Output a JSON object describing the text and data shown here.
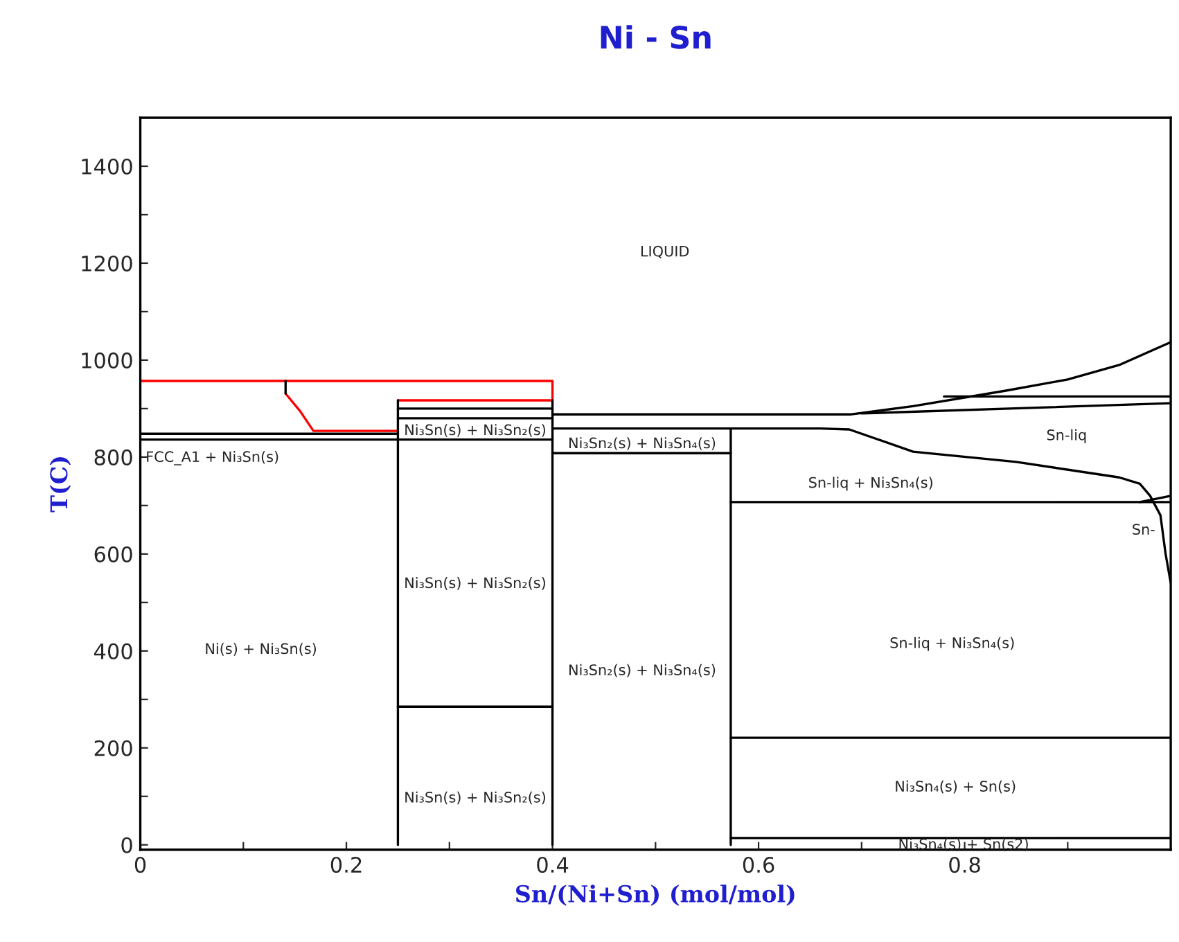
{
  "chart_data": {
    "type": "line",
    "title": "Ni - Sn",
    "xlabel": "Sn/(Ni+Sn) (mol/mol)",
    "ylabel": "T(C)",
    "xlim": [
      0,
      1
    ],
    "ylim": [
      -10,
      1500
    ],
    "xticks": [
      0,
      {
        "value": 0.1,
        "label": null
      },
      0.2,
      {
        "value": 0.3,
        "label": null
      },
      0.4,
      {
        "value": 0.5,
        "label": null
      },
      0.6,
      {
        "value": 0.7,
        "label": null
      },
      0.8,
      {
        "value": 0.9,
        "label": null
      }
    ],
    "yticks": [
      0,
      {
        "value": 100,
        "label": null
      },
      200,
      {
        "value": 300,
        "label": null
      },
      400,
      {
        "value": 500,
        "label": null
      },
      600,
      {
        "value": 700,
        "label": null
      },
      800,
      {
        "value": 900,
        "label": null
      },
      1000,
      {
        "value": 1100,
        "label": null
      },
      1200,
      {
        "value": 1300,
        "label": null
      },
      1400
    ],
    "grid": false,
    "legend": false,
    "marker": "none",
    "line_style": "solid",
    "series": [
      {
        "color": "#ff0000",
        "x": [
          0,
          0.4,
          0.4,
          0.25
        ],
        "values": [
          957,
          957,
          917,
          917
        ]
      },
      {
        "color": "#ff0000",
        "x": [
          0.25,
          0.168,
          0.155,
          0.141
        ],
        "values": [
          854,
          854,
          895,
          931
        ]
      },
      {
        "color": "#000000",
        "x": [
          0.141,
          0.141
        ],
        "values": [
          931,
          957
        ]
      },
      {
        "color": "#000000",
        "x": [
          0.25,
          0.25
        ],
        "values": [
          0,
          917
        ]
      },
      {
        "color": "#000000",
        "x": [
          0.4,
          0.4
        ],
        "values": [
          0,
          917
        ]
      },
      {
        "color": "#000000",
        "x": [
          0.573,
          0.573
        ],
        "values": [
          0,
          859
        ]
      },
      {
        "color": "#000000",
        "x": [
          0.25,
          0.4
        ],
        "values": [
          285,
          285
        ]
      },
      {
        "color": "#000000",
        "x": [
          0,
          0.4
        ],
        "values": [
          836,
          836
        ]
      },
      {
        "color": "#000000",
        "x": [
          0,
          0.25
        ],
        "values": [
          848,
          848
        ]
      },
      {
        "color": "#000000",
        "x": [
          0.25,
          0.4
        ],
        "values": [
          900,
          900
        ]
      },
      {
        "color": "#000000",
        "x": [
          0.25,
          0.4
        ],
        "values": [
          880,
          880
        ]
      },
      {
        "color": "#000000",
        "x": [
          0.4,
          0.573
        ],
        "values": [
          808,
          808
        ]
      },
      {
        "color": "#000000",
        "x": [
          0.4,
          0.66,
          0.688,
          0.75,
          0.85,
          0.95,
          0.97,
          0.98,
          0.99,
          0.995,
          1.0
        ],
        "values": [
          859,
          859,
          857,
          811,
          790,
          758,
          745,
          720,
          680,
          600,
          540
        ]
      },
      {
        "color": "#000000",
        "x": [
          0.573,
          1.0
        ],
        "values": [
          707,
          707
        ]
      },
      {
        "color": "#000000",
        "x": [
          0.573,
          1.0
        ],
        "values": [
          221,
          221
        ]
      },
      {
        "color": "#000000",
        "x": [
          0.573,
          1.0
        ],
        "values": [
          14,
          14
        ]
      },
      {
        "color": "#000000",
        "x": [
          0.4,
          0.689,
          0.75,
          0.84,
          0.9,
          0.95,
          1.0
        ],
        "values": [
          888,
          888,
          905,
          937,
          960,
          990,
          1037
        ]
      },
      {
        "color": "#000000",
        "x": [
          0.7,
          1.0
        ],
        "values": [
          890,
          911
        ]
      },
      {
        "color": "#000000",
        "x": [
          0.78,
          1.0
        ],
        "values": [
          925,
          925
        ]
      },
      {
        "color": "#000000",
        "x": [
          0.97,
          1.0
        ],
        "values": [
          707,
          720
        ]
      }
    ],
    "annotations": [
      "LIQUID",
      "FCC_A1 + Ni₃Sn(s)",
      "Ni₃Sn(s) + Ni₃Sn₂(s)",
      "Ni₃Sn₂(s) + Ni₃Sn₄(s)",
      "Sn-liq",
      "Sn-liq + Ni₃Sn₄(s)",
      "Sn-",
      "Ni₃Sn(s) + Ni₃Sn₂(s)",
      "Ni(s) + Ni₃Sn(s)",
      "Ni₃Sn₂(s) + Ni₃Sn₄(s)",
      "Sn-liq + Ni₃Sn₄(s)",
      "Ni₃Sn(s) + Ni₃Sn₂(s)",
      "Ni₃Sn₄(s) + Sn(s)",
      "Ni₃Sn₄(s) + Sn(s2)"
    ]
  }
}
